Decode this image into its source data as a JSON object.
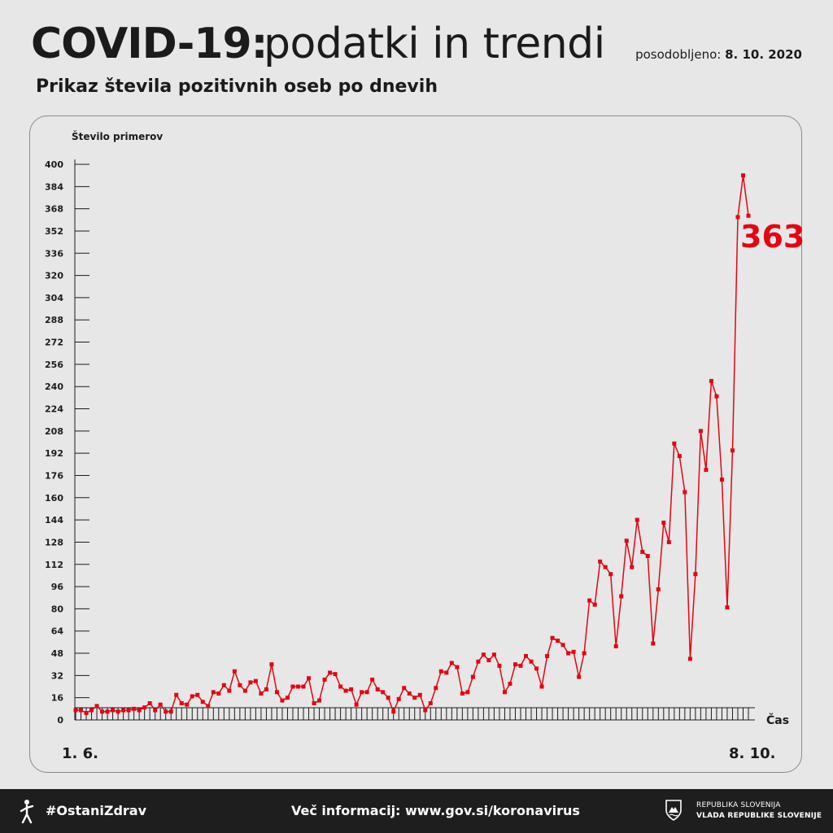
{
  "header": {
    "title_bold": "COVID-19:",
    "title_light": "podatki in trendi",
    "updated_label": "posodobljeno:",
    "updated_date": "8. 10. 2020",
    "subtitle": "Prikaz števila pozitivnih oseb po dnevih"
  },
  "chart_data": {
    "type": "line",
    "ylabel": "Število primerov",
    "xlabel": "Čas",
    "x_start_label": "1. 6.",
    "x_end_label": "8. 10.",
    "ylim": [
      0,
      400
    ],
    "y_ticks": [
      0,
      16,
      32,
      48,
      64,
      80,
      96,
      112,
      128,
      144,
      160,
      176,
      192,
      208,
      224,
      240,
      256,
      272,
      288,
      304,
      320,
      336,
      352,
      368,
      384,
      400
    ],
    "last_value_label": "363",
    "series": [
      {
        "color": "#e30613",
        "values": [
          7,
          7,
          5,
          7,
          10,
          6,
          6,
          7,
          6,
          7,
          7,
          8,
          7,
          9,
          12,
          7,
          11,
          6,
          6,
          18,
          12,
          11,
          17,
          18,
          13,
          10,
          20,
          19,
          25,
          21,
          35,
          25,
          21,
          27,
          28,
          19,
          22,
          40,
          20,
          14,
          16,
          24,
          24,
          24,
          30,
          12,
          14,
          29,
          34,
          33,
          24,
          21,
          22,
          11,
          20,
          20,
          29,
          22,
          20,
          16,
          6,
          15,
          23,
          19,
          16,
          18,
          7,
          12,
          23,
          35,
          34,
          41,
          38,
          19,
          20,
          31,
          42,
          47,
          43,
          47,
          39,
          20,
          26,
          40,
          39,
          46,
          42,
          37,
          24,
          46,
          59,
          57,
          54,
          48,
          49,
          31,
          48,
          86,
          83,
          114,
          110,
          105,
          53,
          89,
          129,
          110,
          144,
          121,
          118,
          55,
          94,
          142,
          128,
          199,
          190,
          164,
          44,
          105,
          208,
          180,
          244,
          233,
          173,
          81,
          194,
          362,
          392,
          363
        ]
      }
    ]
  },
  "footer": {
    "hashtag": "#OstaniZdrav",
    "info": "Več informacij: www.gov.si/koronavirus",
    "gov_line1": "REPUBLIKA SLOVENIJA",
    "gov_line2": "VLADA REPUBLIKE SLOVENIJE",
    "figure_icon": "person-figure-icon",
    "crest_icon": "coat-of-arms-icon"
  }
}
